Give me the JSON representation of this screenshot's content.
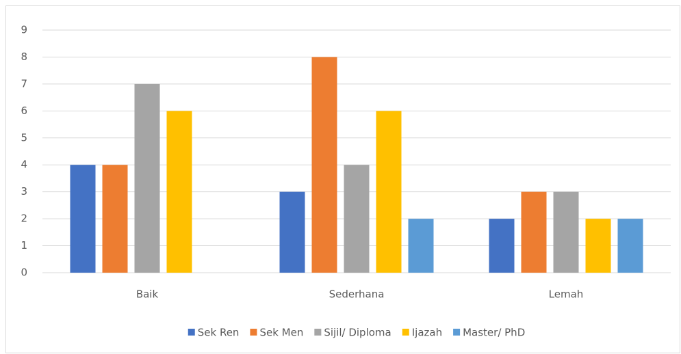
{
  "chart_data": {
    "type": "bar",
    "categories": [
      "Baik",
      "Sederhana",
      "Lemah"
    ],
    "series": [
      {
        "name": "Sek Ren",
        "color": "#4472c4",
        "values": [
          4,
          3,
          2
        ]
      },
      {
        "name": "Sek Men",
        "color": "#ed7d31",
        "values": [
          4,
          8,
          3
        ]
      },
      {
        "name": "Sijil/ Diploma",
        "color": "#a5a5a5",
        "values": [
          7,
          4,
          3
        ]
      },
      {
        "name": "Ijazah",
        "color": "#ffc000",
        "values": [
          6,
          6,
          2
        ]
      },
      {
        "name": "Master/ PhD",
        "color": "#5b9bd5",
        "values": [
          0,
          2,
          2
        ]
      }
    ],
    "ylim": [
      0,
      9
    ],
    "yticks": [
      0,
      1,
      2,
      3,
      4,
      5,
      6,
      7,
      8,
      9
    ],
    "grid": true,
    "legend": "bottom"
  }
}
